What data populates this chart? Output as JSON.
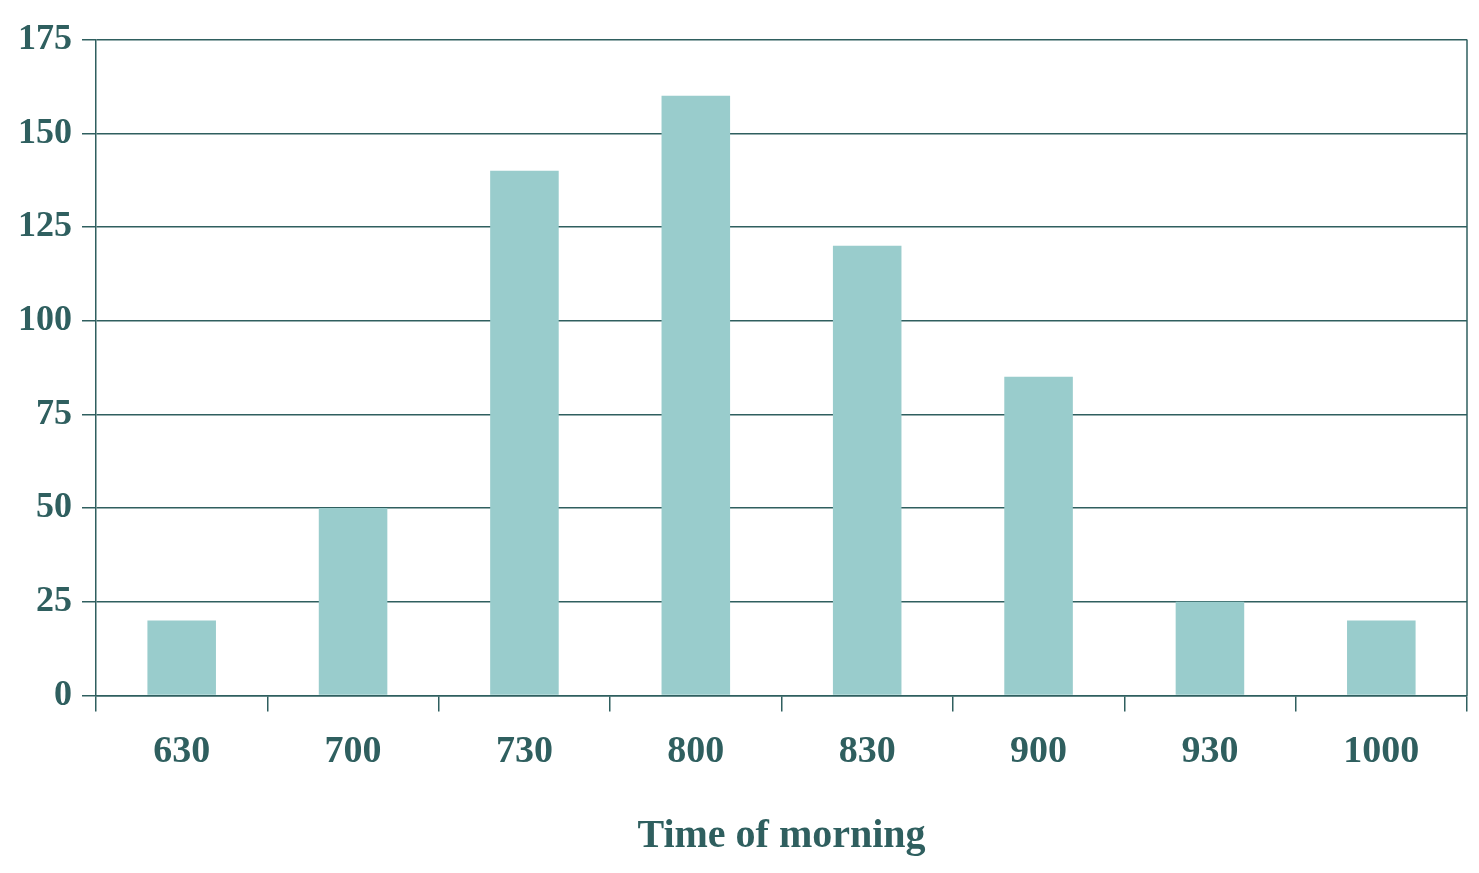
{
  "chart_data": {
    "type": "bar",
    "xlabel": "Time of morning",
    "categories": [
      "630",
      "700",
      "730",
      "800",
      "830",
      "900",
      "930",
      "1000"
    ],
    "values": [
      20,
      50,
      140,
      160,
      120,
      85,
      25,
      20
    ],
    "color": "#99cccc",
    "ylim": [
      0,
      175
    ],
    "yticks": [
      0,
      25,
      50,
      75,
      100,
      125,
      150,
      175
    ],
    "grid": "y",
    "legend": false
  }
}
